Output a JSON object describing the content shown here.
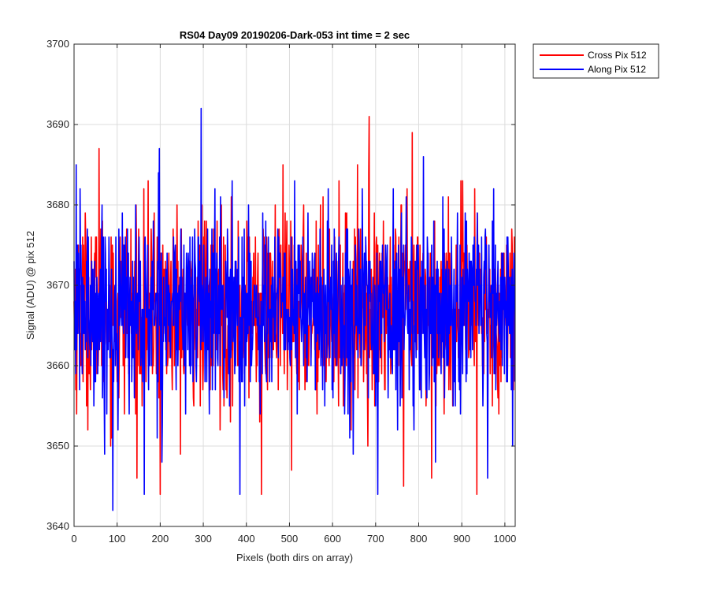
{
  "chart_data": {
    "type": "line",
    "title": "RS04 Day09 20190206-Dark-053 int time = 2 sec",
    "xlabel": "Pixels (both dirs on array)",
    "ylabel": "Signal (ADU) @ pix 512",
    "xlim": [
      0,
      1024
    ],
    "ylim": [
      3640,
      3700
    ],
    "xticks": [
      0,
      100,
      200,
      300,
      400,
      500,
      600,
      700,
      800,
      900,
      1000
    ],
    "yticks": [
      3640,
      3650,
      3660,
      3670,
      3680,
      3690,
      3700
    ],
    "grid": true,
    "legend_position": "outside-top-right",
    "noise_model": {
      "mean": 3667,
      "std": 6,
      "min": 3642,
      "max": 3692,
      "points_per_series": 1024
    },
    "series": [
      {
        "name": "Cross Pix 512",
        "color": "#ff0000",
        "approximate": true,
        "spikes": [
          {
            "x": 58,
            "y": 3687
          },
          {
            "x": 200,
            "y": 3644
          },
          {
            "x": 435,
            "y": 3644
          },
          {
            "x": 505,
            "y": 3689
          },
          {
            "x": 505,
            "y": 3647
          },
          {
            "x": 685,
            "y": 3691
          },
          {
            "x": 765,
            "y": 3645
          },
          {
            "x": 785,
            "y": 3689
          },
          {
            "x": 830,
            "y": 3646
          },
          {
            "x": 935,
            "y": 3644
          }
        ]
      },
      {
        "name": "Along Pix 512",
        "color": "#0000ff",
        "approximate": true,
        "spikes": [
          {
            "x": 5,
            "y": 3685
          },
          {
            "x": 90,
            "y": 3642
          },
          {
            "x": 163,
            "y": 3644
          },
          {
            "x": 198,
            "y": 3687
          },
          {
            "x": 295,
            "y": 3692
          },
          {
            "x": 385,
            "y": 3644
          },
          {
            "x": 705,
            "y": 3644
          },
          {
            "x": 960,
            "y": 3646
          },
          {
            "x": 1018,
            "y": 3650
          }
        ]
      }
    ]
  }
}
